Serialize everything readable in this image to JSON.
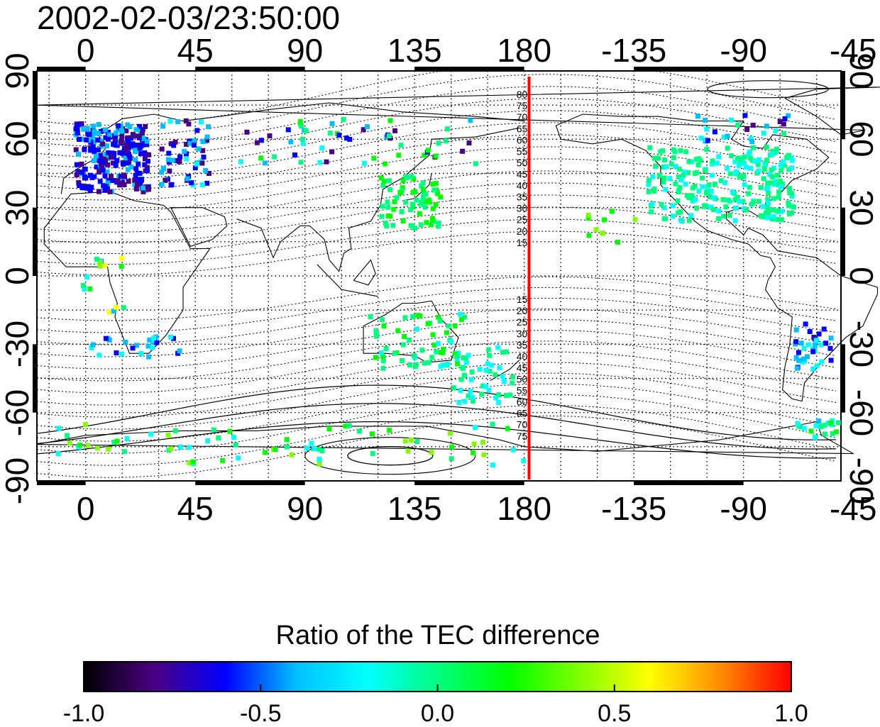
{
  "title": "2002-02-03/23:50:00",
  "map": {
    "top_ticks": [
      "0",
      "45",
      "90",
      "135",
      "180",
      "-135",
      "-90",
      "-45"
    ],
    "bottom_ticks": [
      "0",
      "45",
      "90",
      "135",
      "180",
      "-135",
      "-90",
      "-45"
    ],
    "left_ticks": [
      "90",
      "60",
      "30",
      "0",
      "-30",
      "-60",
      "-90"
    ],
    "right_ticks": [
      "90",
      "60",
      "30",
      "0",
      "-30",
      "-60",
      "-90"
    ],
    "lon_range": [
      -20,
      310
    ],
    "lat_range": [
      -90,
      90
    ],
    "meridian_lon": 182,
    "meridian_color": "#ff0000",
    "contour_labels_north": [
      "80",
      "75",
      "70",
      "65",
      "60",
      "55",
      "50",
      "45",
      "40",
      "35",
      "30",
      "25",
      "20",
      "15"
    ],
    "contour_labels_south": [
      "15",
      "20",
      "25",
      "30",
      "35",
      "40",
      "45",
      "50",
      "55",
      "60",
      "65",
      "70",
      "75"
    ],
    "grid": "dotted"
  },
  "colorbar": {
    "title": "Ratio of the TEC difference",
    "labels": [
      "-1.0",
      "-0.5",
      "0.0",
      "0.5",
      "1.0"
    ],
    "range": [
      -1.0,
      1.0
    ],
    "colors": [
      "#000000",
      "#4b0082",
      "#0000ff",
      "#00bfff",
      "#00ffff",
      "#00ff7f",
      "#00ff00",
      "#7fff00",
      "#ffff00",
      "#ff8c00",
      "#ff0000"
    ]
  }
}
